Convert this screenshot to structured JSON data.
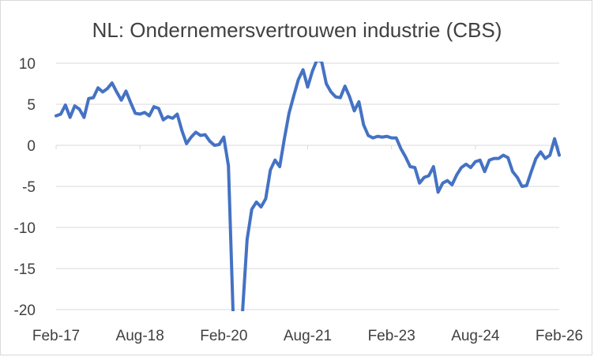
{
  "chart_data": {
    "type": "line",
    "title": "NL: Ondernemersvertrouwen industrie (CBS)",
    "xlabel": "",
    "ylabel": "",
    "ylim": [
      -20,
      10
    ],
    "yticks": [
      10,
      5,
      0,
      -5,
      -10,
      -15,
      -20
    ],
    "xticks": [
      {
        "label": "Feb-17",
        "date": "2017-02"
      },
      {
        "label": "Aug-18",
        "date": "2018-08"
      },
      {
        "label": "Feb-20",
        "date": "2020-02"
      },
      {
        "label": "Aug-21",
        "date": "2021-08"
      },
      {
        "label": "Feb-23",
        "date": "2023-02"
      },
      {
        "label": "Aug-24",
        "date": "2024-08"
      },
      {
        "label": "Feb-26",
        "date": "2026-02"
      }
    ],
    "grid": true,
    "line_color": "#4472c4",
    "series": [
      {
        "x": [
          "2017-02",
          "2017-03",
          "2017-04",
          "2017-05",
          "2017-06",
          "2017-07",
          "2017-08",
          "2017-09",
          "2017-10",
          "2017-11",
          "2017-12",
          "2018-01",
          "2018-02",
          "2018-03",
          "2018-04",
          "2018-05",
          "2018-06",
          "2018-07",
          "2018-08",
          "2018-09",
          "2018-10",
          "2018-11",
          "2018-12",
          "2019-01",
          "2019-02",
          "2019-03",
          "2019-04",
          "2019-05",
          "2019-06",
          "2019-07",
          "2019-08",
          "2019-09",
          "2019-10",
          "2019-11",
          "2019-12",
          "2020-01",
          "2020-02",
          "2020-03",
          "2020-04",
          "2020-05",
          "2020-06",
          "2020-07",
          "2020-08",
          "2020-09",
          "2020-10",
          "2020-11",
          "2020-12",
          "2021-01",
          "2021-02",
          "2021-03",
          "2021-04",
          "2021-05",
          "2021-06",
          "2021-07",
          "2021-08",
          "2021-09",
          "2021-10",
          "2021-11",
          "2021-12",
          "2022-01",
          "2022-02",
          "2022-03",
          "2022-04",
          "2022-05",
          "2022-06",
          "2022-07",
          "2022-08",
          "2022-09",
          "2022-10",
          "2022-11",
          "2022-12",
          "2023-01",
          "2023-02",
          "2023-03",
          "2023-04",
          "2023-05",
          "2023-06",
          "2023-07",
          "2023-08",
          "2023-09",
          "2023-10",
          "2023-11",
          "2023-12",
          "2024-01",
          "2024-02",
          "2024-03",
          "2024-04",
          "2024-05",
          "2024-06",
          "2024-07",
          "2024-08",
          "2024-09",
          "2024-10",
          "2024-11",
          "2024-12",
          "2025-01",
          "2025-02",
          "2025-03",
          "2025-04",
          "2025-05",
          "2025-06",
          "2025-07",
          "2025-08",
          "2025-09",
          "2025-10",
          "2025-11",
          "2025-12",
          "2026-01",
          "2026-02"
        ],
        "y": [
          3.6,
          3.8,
          4.9,
          3.4,
          4.8,
          4.4,
          3.4,
          5.7,
          5.8,
          7.0,
          6.5,
          6.9,
          7.6,
          6.5,
          5.5,
          6.6,
          5.2,
          3.9,
          3.8,
          4.0,
          3.6,
          4.7,
          4.5,
          3.1,
          3.5,
          3.3,
          3.8,
          1.8,
          0.2,
          1.0,
          1.6,
          1.2,
          1.3,
          0.5,
          0.0,
          0.1,
          1.0,
          -2.5,
          -20.5,
          -20.5,
          -20.5,
          -11.5,
          -7.8,
          -6.9,
          -7.5,
          -6.5,
          -3.0,
          -1.8,
          -2.6,
          0.8,
          3.9,
          6.0,
          8.0,
          9.2,
          7.1,
          9.0,
          10.4,
          10.2,
          7.5,
          6.5,
          5.9,
          5.8,
          7.2,
          5.9,
          4.2,
          5.3,
          2.5,
          1.2,
          0.9,
          1.1,
          1.0,
          1.1,
          0.9,
          0.9,
          -0.4,
          -1.4,
          -2.6,
          -2.7,
          -4.6,
          -3.9,
          -3.7,
          -2.6,
          -5.7,
          -4.6,
          -4.3,
          -4.8,
          -3.6,
          -2.7,
          -2.3,
          -2.7,
          -2.0,
          -1.8,
          -3.2,
          -1.8,
          -1.6,
          -1.6,
          -1.2,
          -1.5,
          -3.2,
          -3.9,
          -5.0,
          -4.9,
          -3.2,
          -1.6,
          -0.8,
          -1.6,
          -1.2,
          0.8,
          -1.2
        ]
      }
    ]
  }
}
